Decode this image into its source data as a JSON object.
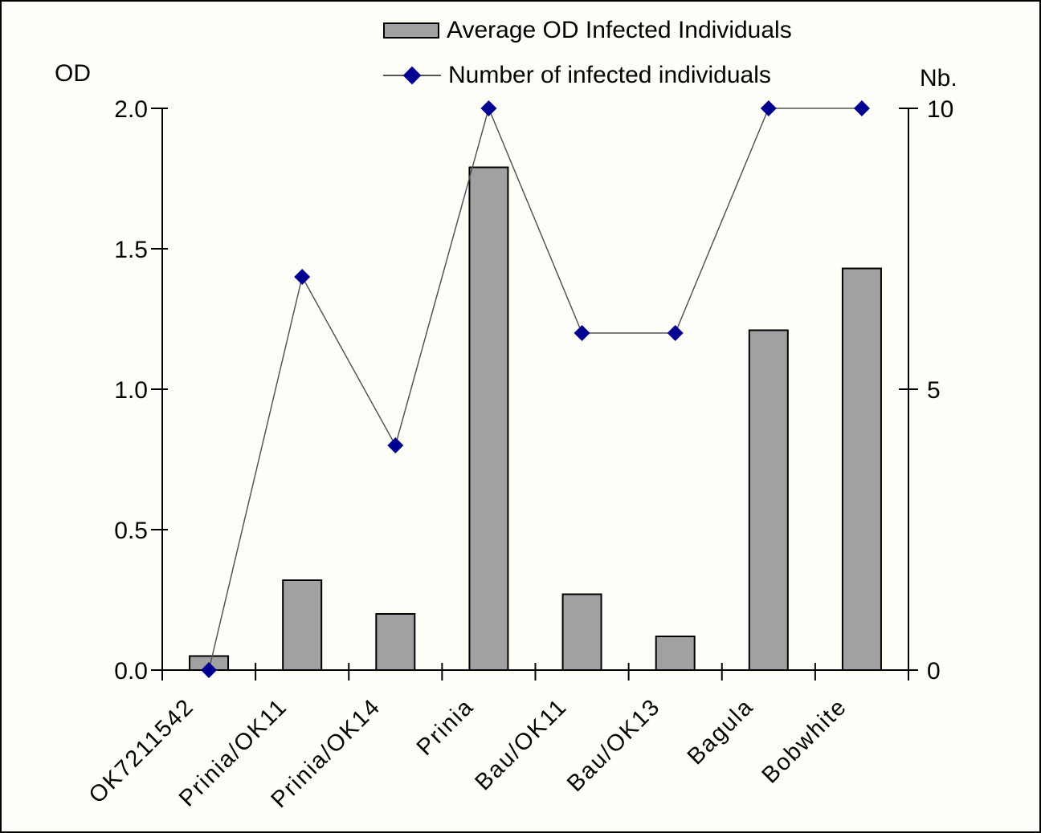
{
  "figure": {
    "background": "#fffffa",
    "border_color": "#000000"
  },
  "legend": {
    "position": "top-center",
    "items": [
      {
        "label": "Average OD Infected Individuals",
        "marker": "gray-bar-swatch",
        "color": "#a1a1a1"
      },
      {
        "label": "Number of infected individuals",
        "marker": "navy-diamond-line",
        "color": "#000090"
      }
    ]
  },
  "chart_data": {
    "type": "combo",
    "categories": [
      "OK7211542",
      "Prinia/OK11",
      "Prinia/OK14",
      "Prinia",
      "Bau/OK11",
      "Bau/OK13",
      "Bagula",
      "Bobwhite"
    ],
    "series": [
      {
        "name": "Average OD Infected Individuals",
        "type": "bar",
        "axis": "left",
        "color": "#a1a1a1",
        "border_color": "#000000",
        "values": [
          0.05,
          0.32,
          0.2,
          1.79,
          0.27,
          0.12,
          1.21,
          1.43
        ]
      },
      {
        "name": "Number of infected individuals",
        "type": "line",
        "axis": "right",
        "marker": "diamond",
        "color": "#000090",
        "line_color": "#555555",
        "values": [
          0,
          7,
          4,
          10,
          6,
          6,
          10,
          10
        ]
      }
    ],
    "left_axis": {
      "label": "OD",
      "min": 0,
      "max": 2,
      "ticks": [
        {
          "v": 0.0,
          "label": "0.0"
        },
        {
          "v": 0.5,
          "label": "0.5"
        },
        {
          "v": 1.0,
          "label": "1.0"
        },
        {
          "v": 1.5,
          "label": "1.5"
        },
        {
          "v": 2.0,
          "label": "2.0"
        }
      ]
    },
    "right_axis": {
      "label": "Nb.",
      "min": 0,
      "max": 10,
      "ticks": [
        {
          "v": 0,
          "label": "0"
        },
        {
          "v": 5,
          "label": "5"
        },
        {
          "v": 10,
          "label": "10"
        }
      ]
    },
    "grid": false,
    "x_label_rotation_deg": -45
  }
}
